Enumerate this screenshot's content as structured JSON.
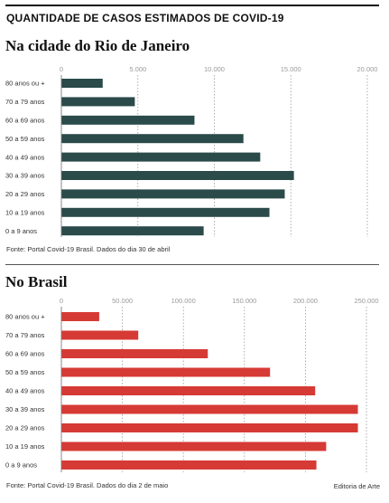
{
  "header": {
    "title": "QUANTIDADE DE CASOS ESTIMADOS DE COVID-19"
  },
  "sections": [
    {
      "title": "Na cidade do Rio de Janeiro",
      "source": "Fonte: Portal Covid-19 Brasil. Dados do dia 30 de abril"
    },
    {
      "title": "No Brasil",
      "source": "Fonte: Portal Covid-19 Brasil. Dados do dia 2 de maio"
    }
  ],
  "credit": "Editoria de Arte",
  "chart_data": [
    {
      "type": "bar",
      "orientation": "horizontal",
      "title": "Na cidade do Rio de Janeiro",
      "categories": [
        "80 anos ou +",
        "70 a 79 anos",
        "60 a 69 anos",
        "50 a 59 anos",
        "40 a 49 anos",
        "30 a 39 anos",
        "20 a 29 anos",
        "10 a 19 anos",
        "0 a 9 anos"
      ],
      "values": [
        2700,
        4800,
        8700,
        11900,
        13000,
        15200,
        14600,
        13600,
        9300
      ],
      "xlim": [
        0,
        20000
      ],
      "ticks": [
        "0",
        "5.000",
        "10.000",
        "15.000",
        "20.000"
      ],
      "tick_values": [
        0,
        5000,
        10000,
        15000,
        20000
      ],
      "color": "#2b4a4a",
      "grid": true
    },
    {
      "type": "bar",
      "orientation": "horizontal",
      "title": "No Brasil",
      "categories": [
        "80 anos ou +",
        "70 a 79 anos",
        "60 a 69 anos",
        "50 a 59 anos",
        "40 a 49 anos",
        "30 a 39 anos",
        "20 a 29 anos",
        "10 a 19 anos",
        "0 a 9 anos"
      ],
      "values": [
        31000,
        63000,
        120000,
        171000,
        208000,
        243000,
        243000,
        217000,
        209000
      ],
      "xlim": [
        0,
        250000
      ],
      "ticks": [
        "0",
        "50.000",
        "100.000",
        "150.000",
        "200.000",
        "250.000"
      ],
      "tick_values": [
        0,
        50000,
        100000,
        150000,
        200000,
        250000
      ],
      "color": "#d63a35",
      "grid": true
    }
  ]
}
